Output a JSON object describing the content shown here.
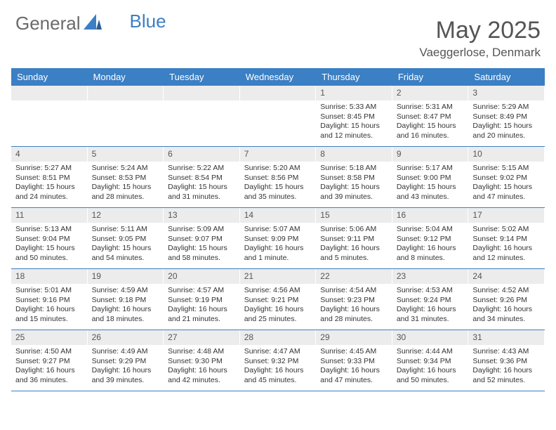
{
  "brand": {
    "part1": "General",
    "part2": "Blue",
    "text_color": "#6a6a6a",
    "accent_color": "#3b7fc4"
  },
  "title": {
    "month": "May 2025",
    "location": "Vaeggerlose, Denmark",
    "month_fontsize": 34,
    "loc_fontsize": 17
  },
  "colors": {
    "header_bg": "#3b7fc4",
    "header_text": "#ffffff",
    "daynum_bg": "#ececec",
    "week_border": "#3b7fc4",
    "body_text": "#333333",
    "background": "#ffffff"
  },
  "day_headers": [
    "Sunday",
    "Monday",
    "Tuesday",
    "Wednesday",
    "Thursday",
    "Friday",
    "Saturday"
  ],
  "weeks": [
    [
      {
        "n": "",
        "empty": true
      },
      {
        "n": "",
        "empty": true
      },
      {
        "n": "",
        "empty": true
      },
      {
        "n": "",
        "empty": true
      },
      {
        "n": "1",
        "sr": "Sunrise: 5:33 AM",
        "ss": "Sunset: 8:45 PM",
        "d1": "Daylight: 15 hours",
        "d2": "and 12 minutes."
      },
      {
        "n": "2",
        "sr": "Sunrise: 5:31 AM",
        "ss": "Sunset: 8:47 PM",
        "d1": "Daylight: 15 hours",
        "d2": "and 16 minutes."
      },
      {
        "n": "3",
        "sr": "Sunrise: 5:29 AM",
        "ss": "Sunset: 8:49 PM",
        "d1": "Daylight: 15 hours",
        "d2": "and 20 minutes."
      }
    ],
    [
      {
        "n": "4",
        "sr": "Sunrise: 5:27 AM",
        "ss": "Sunset: 8:51 PM",
        "d1": "Daylight: 15 hours",
        "d2": "and 24 minutes."
      },
      {
        "n": "5",
        "sr": "Sunrise: 5:24 AM",
        "ss": "Sunset: 8:53 PM",
        "d1": "Daylight: 15 hours",
        "d2": "and 28 minutes."
      },
      {
        "n": "6",
        "sr": "Sunrise: 5:22 AM",
        "ss": "Sunset: 8:54 PM",
        "d1": "Daylight: 15 hours",
        "d2": "and 31 minutes."
      },
      {
        "n": "7",
        "sr": "Sunrise: 5:20 AM",
        "ss": "Sunset: 8:56 PM",
        "d1": "Daylight: 15 hours",
        "d2": "and 35 minutes."
      },
      {
        "n": "8",
        "sr": "Sunrise: 5:18 AM",
        "ss": "Sunset: 8:58 PM",
        "d1": "Daylight: 15 hours",
        "d2": "and 39 minutes."
      },
      {
        "n": "9",
        "sr": "Sunrise: 5:17 AM",
        "ss": "Sunset: 9:00 PM",
        "d1": "Daylight: 15 hours",
        "d2": "and 43 minutes."
      },
      {
        "n": "10",
        "sr": "Sunrise: 5:15 AM",
        "ss": "Sunset: 9:02 PM",
        "d1": "Daylight: 15 hours",
        "d2": "and 47 minutes."
      }
    ],
    [
      {
        "n": "11",
        "sr": "Sunrise: 5:13 AM",
        "ss": "Sunset: 9:04 PM",
        "d1": "Daylight: 15 hours",
        "d2": "and 50 minutes."
      },
      {
        "n": "12",
        "sr": "Sunrise: 5:11 AM",
        "ss": "Sunset: 9:05 PM",
        "d1": "Daylight: 15 hours",
        "d2": "and 54 minutes."
      },
      {
        "n": "13",
        "sr": "Sunrise: 5:09 AM",
        "ss": "Sunset: 9:07 PM",
        "d1": "Daylight: 15 hours",
        "d2": "and 58 minutes."
      },
      {
        "n": "14",
        "sr": "Sunrise: 5:07 AM",
        "ss": "Sunset: 9:09 PM",
        "d1": "Daylight: 16 hours",
        "d2": "and 1 minute."
      },
      {
        "n": "15",
        "sr": "Sunrise: 5:06 AM",
        "ss": "Sunset: 9:11 PM",
        "d1": "Daylight: 16 hours",
        "d2": "and 5 minutes."
      },
      {
        "n": "16",
        "sr": "Sunrise: 5:04 AM",
        "ss": "Sunset: 9:12 PM",
        "d1": "Daylight: 16 hours",
        "d2": "and 8 minutes."
      },
      {
        "n": "17",
        "sr": "Sunrise: 5:02 AM",
        "ss": "Sunset: 9:14 PM",
        "d1": "Daylight: 16 hours",
        "d2": "and 12 minutes."
      }
    ],
    [
      {
        "n": "18",
        "sr": "Sunrise: 5:01 AM",
        "ss": "Sunset: 9:16 PM",
        "d1": "Daylight: 16 hours",
        "d2": "and 15 minutes."
      },
      {
        "n": "19",
        "sr": "Sunrise: 4:59 AM",
        "ss": "Sunset: 9:18 PM",
        "d1": "Daylight: 16 hours",
        "d2": "and 18 minutes."
      },
      {
        "n": "20",
        "sr": "Sunrise: 4:57 AM",
        "ss": "Sunset: 9:19 PM",
        "d1": "Daylight: 16 hours",
        "d2": "and 21 minutes."
      },
      {
        "n": "21",
        "sr": "Sunrise: 4:56 AM",
        "ss": "Sunset: 9:21 PM",
        "d1": "Daylight: 16 hours",
        "d2": "and 25 minutes."
      },
      {
        "n": "22",
        "sr": "Sunrise: 4:54 AM",
        "ss": "Sunset: 9:23 PM",
        "d1": "Daylight: 16 hours",
        "d2": "and 28 minutes."
      },
      {
        "n": "23",
        "sr": "Sunrise: 4:53 AM",
        "ss": "Sunset: 9:24 PM",
        "d1": "Daylight: 16 hours",
        "d2": "and 31 minutes."
      },
      {
        "n": "24",
        "sr": "Sunrise: 4:52 AM",
        "ss": "Sunset: 9:26 PM",
        "d1": "Daylight: 16 hours",
        "d2": "and 34 minutes."
      }
    ],
    [
      {
        "n": "25",
        "sr": "Sunrise: 4:50 AM",
        "ss": "Sunset: 9:27 PM",
        "d1": "Daylight: 16 hours",
        "d2": "and 36 minutes."
      },
      {
        "n": "26",
        "sr": "Sunrise: 4:49 AM",
        "ss": "Sunset: 9:29 PM",
        "d1": "Daylight: 16 hours",
        "d2": "and 39 minutes."
      },
      {
        "n": "27",
        "sr": "Sunrise: 4:48 AM",
        "ss": "Sunset: 9:30 PM",
        "d1": "Daylight: 16 hours",
        "d2": "and 42 minutes."
      },
      {
        "n": "28",
        "sr": "Sunrise: 4:47 AM",
        "ss": "Sunset: 9:32 PM",
        "d1": "Daylight: 16 hours",
        "d2": "and 45 minutes."
      },
      {
        "n": "29",
        "sr": "Sunrise: 4:45 AM",
        "ss": "Sunset: 9:33 PM",
        "d1": "Daylight: 16 hours",
        "d2": "and 47 minutes."
      },
      {
        "n": "30",
        "sr": "Sunrise: 4:44 AM",
        "ss": "Sunset: 9:34 PM",
        "d1": "Daylight: 16 hours",
        "d2": "and 50 minutes."
      },
      {
        "n": "31",
        "sr": "Sunrise: 4:43 AM",
        "ss": "Sunset: 9:36 PM",
        "d1": "Daylight: 16 hours",
        "d2": "and 52 minutes."
      }
    ]
  ]
}
